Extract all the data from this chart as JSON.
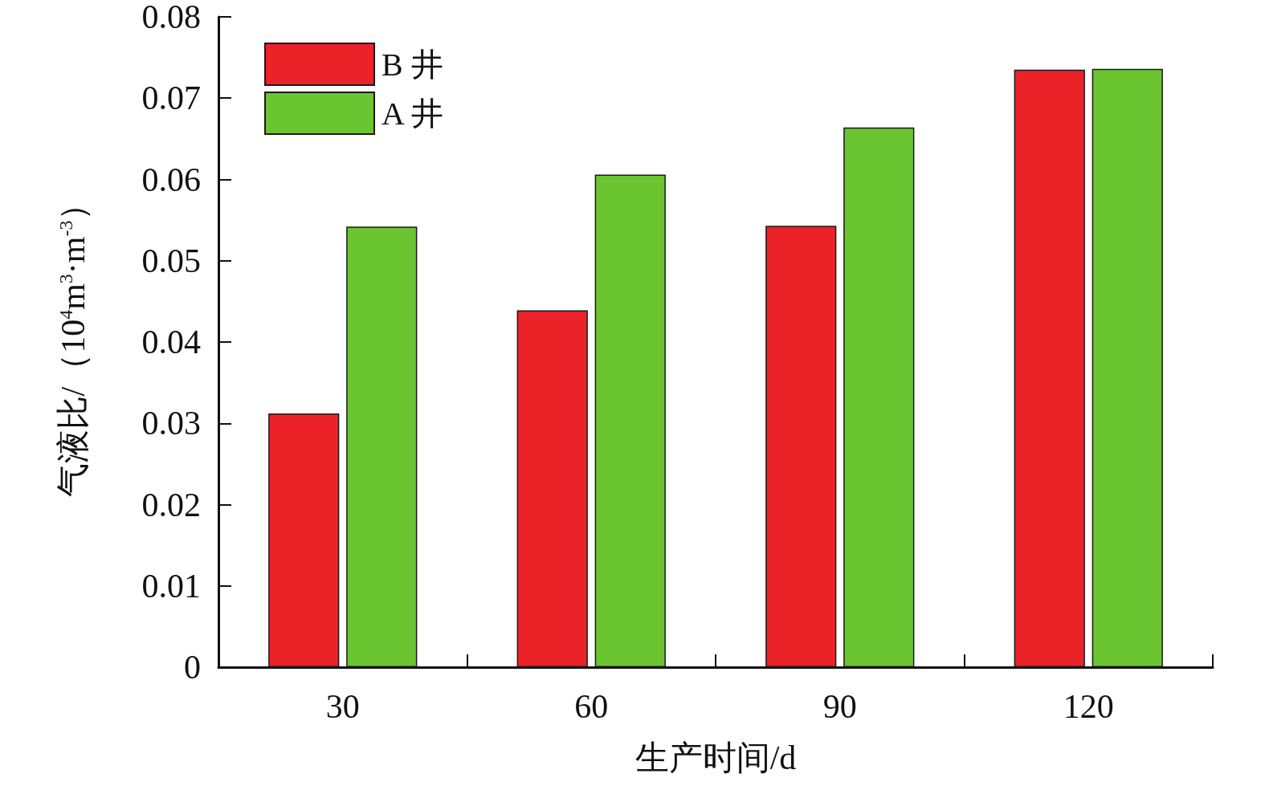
{
  "chart_data": {
    "type": "bar",
    "xlabel": "生产时间/d",
    "ylabel": "气液比/（10$^{4}$m$^{3}$·m$^{-3}$）",
    "categories": [
      "30",
      "60",
      "90",
      "120"
    ],
    "series": [
      {
        "name": "B 井",
        "color": "#ec2229",
        "values": [
          0.0312,
          0.0439,
          0.0543,
          0.0735
        ]
      },
      {
        "name": "A 井",
        "color": "#6ac530",
        "values": [
          0.0542,
          0.0606,
          0.0664,
          0.0736
        ]
      }
    ],
    "ylim": [
      0,
      0.08
    ],
    "yticks": [
      0,
      0.01,
      0.02,
      0.03,
      0.04,
      0.05,
      0.06,
      0.07,
      0.08
    ],
    "legend": "top left"
  }
}
